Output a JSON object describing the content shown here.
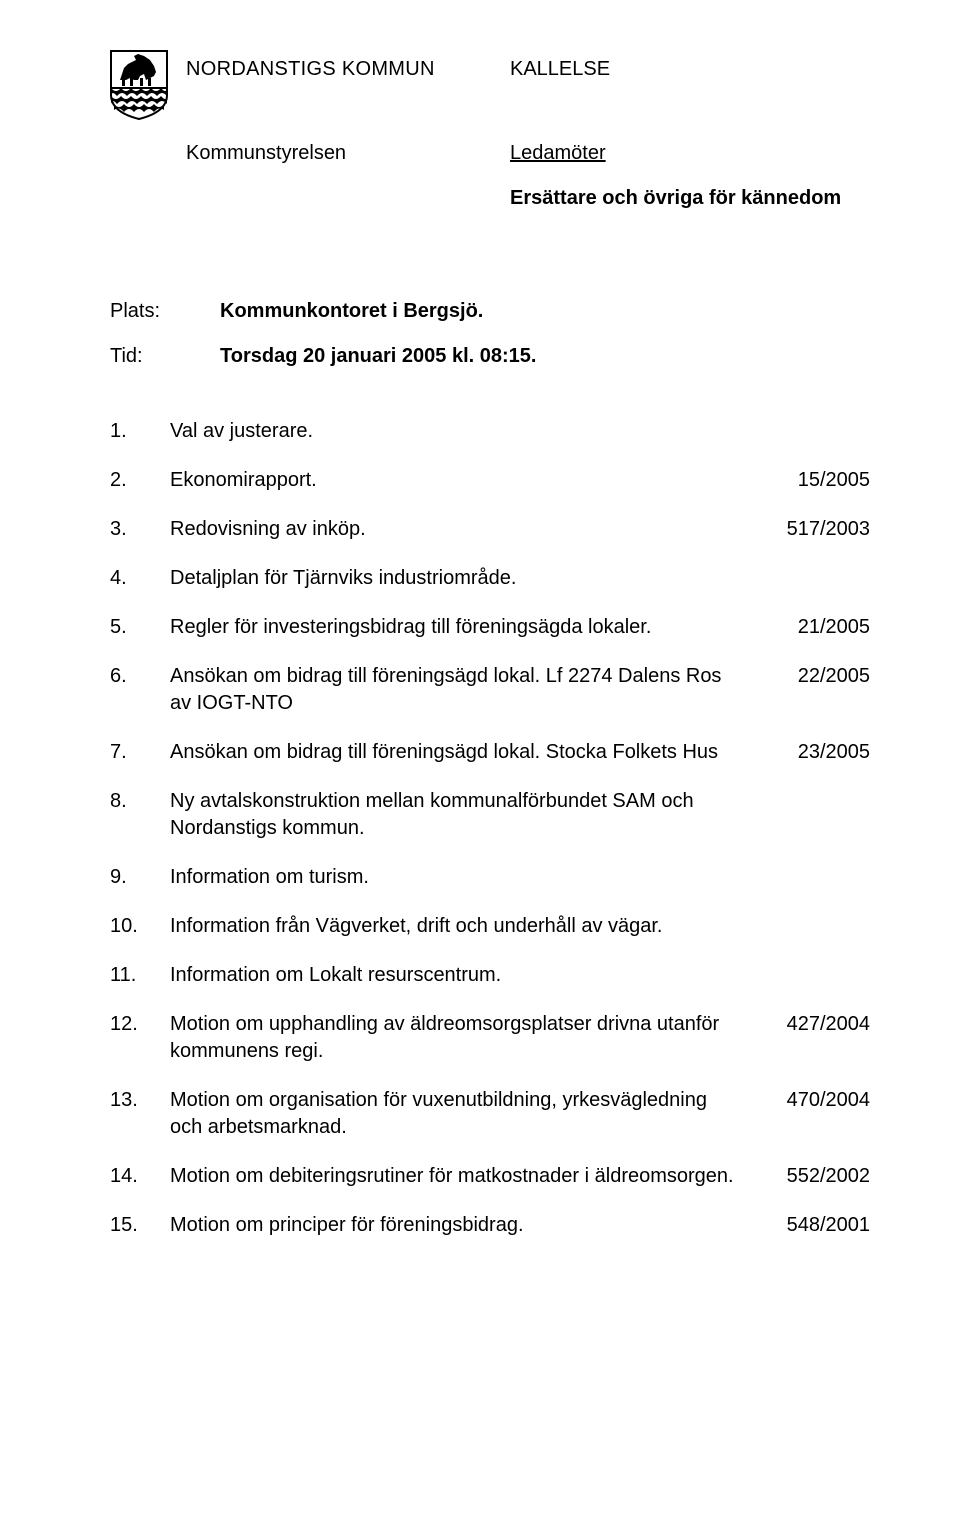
{
  "header": {
    "org": "NORDANSTIGS KOMMUN",
    "doc_type": "KALLELSE",
    "committee": "Kommunstyrelsen",
    "recipients_primary": "Ledamöter",
    "recipients_secondary": "Ersättare och övriga för kännedom"
  },
  "meeting": {
    "place_label": "Plats:",
    "place_value": "Kommunkontoret i Bergsjö.",
    "time_label": "Tid:",
    "time_value": "Torsdag 20 januari 2005 kl. 08:15."
  },
  "agenda": [
    {
      "num": "1.",
      "text": "Val av justerare.",
      "ref": ""
    },
    {
      "num": "2.",
      "text": "Ekonomirapport.",
      "ref": "15/2005"
    },
    {
      "num": "3.",
      "text": "Redovisning av inköp.",
      "ref": "517/2003"
    },
    {
      "num": "4.",
      "text": "Detaljplan för Tjärnviks industriområde.",
      "ref": ""
    },
    {
      "num": "5.",
      "text": "Regler för investeringsbidrag till föreningsägda lokaler.",
      "ref": "21/2005"
    },
    {
      "num": "6.",
      "text": "Ansökan om bidrag till föreningsägd lokal. Lf 2274 Dalens Ros av IOGT-NTO",
      "ref": "22/2005"
    },
    {
      "num": "7.",
      "text": "Ansökan om bidrag till föreningsägd lokal. Stocka Folkets Hus",
      "ref": "23/2005"
    },
    {
      "num": "8.",
      "text": "Ny avtalskonstruktion mellan kommunalförbundet SAM och Nordanstigs kommun.",
      "ref": ""
    },
    {
      "num": "9.",
      "text": "Information om turism.",
      "ref": ""
    },
    {
      "num": "10.",
      "text": "Information från Vägverket, drift och underhåll av vägar.",
      "ref": ""
    },
    {
      "num": "11.",
      "text": "Information om Lokalt resurscentrum.",
      "ref": ""
    },
    {
      "num": "12.",
      "text": "Motion om upphandling av äldreomsorgsplatser drivna utanför kommunens regi.",
      "ref": "427/2004"
    },
    {
      "num": "13.",
      "text": "Motion om organisation för vuxenutbildning, yrkesvägledning och arbetsmarknad.",
      "ref": "470/2004"
    },
    {
      "num": "14.",
      "text": "Motion om debiteringsrutiner för matkostnader i äldreomsorgen.",
      "ref": "552/2002"
    },
    {
      "num": "15.",
      "text": "Motion om principer för föreningsbidrag.",
      "ref": "548/2001"
    }
  ],
  "logo": {
    "outline_color": "#000000",
    "horse_color": "#000000",
    "top_bg": "#ffffff",
    "wave_color": "#000000",
    "wave_bg": "#ffffff"
  }
}
